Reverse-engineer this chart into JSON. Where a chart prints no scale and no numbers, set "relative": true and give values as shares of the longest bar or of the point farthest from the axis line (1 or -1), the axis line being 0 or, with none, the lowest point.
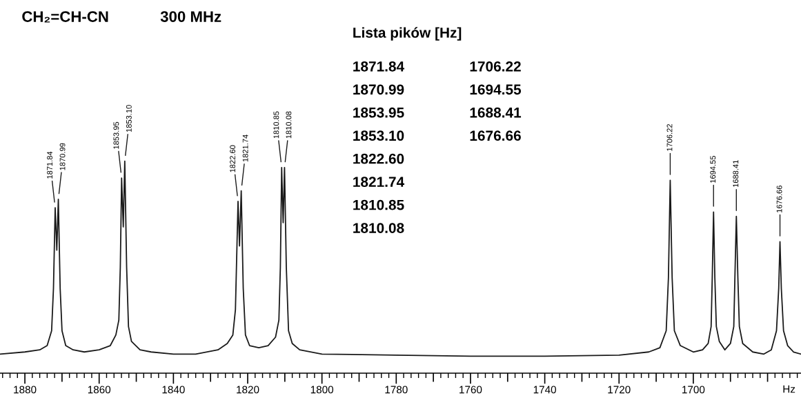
{
  "chart_data": {
    "type": "line",
    "title": "CH₂=CH-CN",
    "subtitle": "300 MHz",
    "xlabel": "Hz",
    "relative": true,
    "color": "#1a1a1a",
    "grid": false,
    "legend": false,
    "marker": "none",
    "line_style": "solid",
    "x": [
      1886.7,
      1880,
      1876,
      1874,
      1872.8,
      1872.3,
      1871.84,
      1871.4,
      1870.99,
      1870.5,
      1870.0,
      1869,
      1867,
      1864,
      1860,
      1857,
      1855.5,
      1854.7,
      1854.3,
      1853.95,
      1853.5,
      1853.1,
      1852.6,
      1852.1,
      1851.3,
      1849,
      1846,
      1840,
      1834,
      1828,
      1825.5,
      1824,
      1823.3,
      1822.6,
      1822.2,
      1821.74,
      1821.2,
      1820.6,
      1819.5,
      1817,
      1814.5,
      1812.5,
      1811.6,
      1811.2,
      1810.85,
      1810.45,
      1810.08,
      1809.6,
      1809.0,
      1808,
      1806,
      1800,
      1780,
      1760,
      1740,
      1720,
      1712,
      1709,
      1707.3,
      1706.7,
      1706.22,
      1705.7,
      1705.1,
      1703.5,
      1700,
      1697.5,
      1696,
      1695.2,
      1694.9,
      1694.55,
      1694.2,
      1693.8,
      1693,
      1691.5,
      1690,
      1689.1,
      1688.8,
      1688.41,
      1688.0,
      1687.6,
      1686.7,
      1684,
      1681,
      1679,
      1677.6,
      1677.0,
      1676.66,
      1676.3,
      1675.7,
      1674.6,
      1673,
      1671
    ],
    "values": [
      0.09,
      0.1,
      0.11,
      0.13,
      0.2,
      0.4,
      0.78,
      0.58,
      0.82,
      0.4,
      0.2,
      0.13,
      0.11,
      0.1,
      0.11,
      0.13,
      0.18,
      0.25,
      0.5,
      0.92,
      0.69,
      1.0,
      0.5,
      0.22,
      0.15,
      0.11,
      0.1,
      0.09,
      0.09,
      0.11,
      0.14,
      0.18,
      0.3,
      0.81,
      0.6,
      0.86,
      0.4,
      0.18,
      0.13,
      0.12,
      0.13,
      0.17,
      0.25,
      0.5,
      0.97,
      0.71,
      0.97,
      0.5,
      0.2,
      0.14,
      0.11,
      0.09,
      0.085,
      0.08,
      0.08,
      0.085,
      0.1,
      0.12,
      0.2,
      0.45,
      0.91,
      0.45,
      0.2,
      0.13,
      0.1,
      0.11,
      0.14,
      0.22,
      0.45,
      0.76,
      0.45,
      0.22,
      0.15,
      0.11,
      0.14,
      0.22,
      0.45,
      0.74,
      0.45,
      0.22,
      0.14,
      0.1,
      0.09,
      0.11,
      0.2,
      0.4,
      0.62,
      0.4,
      0.2,
      0.13,
      0.1,
      0.09
    ],
    "xlim": [
      1886.7,
      1671
    ],
    "xticks": [
      1880,
      {
        "value": 1870,
        "label": null
      },
      1860,
      {
        "value": 1850,
        "label": null
      },
      1840,
      {
        "value": 1830,
        "label": null
      },
      1820,
      {
        "value": 1810,
        "label": null
      },
      1800,
      {
        "value": 1790,
        "label": null
      },
      1780,
      {
        "value": 1770,
        "label": null
      },
      1760,
      {
        "value": 1750,
        "label": null
      },
      1740,
      {
        "value": 1730,
        "label": null
      },
      1720,
      {
        "value": 1710,
        "label": null
      },
      1700,
      {
        "value": 1690,
        "label": null
      },
      {
        "value": 1680,
        "label": null
      }
    ],
    "annotations": [
      {
        "text": "1871.84",
        "x": 1871.84,
        "y": 0.78
      },
      {
        "text": "1870.99",
        "x": 1870.99,
        "y": 0.82
      },
      {
        "text": "1853.95",
        "x": 1853.95,
        "y": 0.92
      },
      {
        "text": "1853.10",
        "x": 1853.1,
        "y": 1.0
      },
      {
        "text": "1822.60",
        "x": 1822.6,
        "y": 0.81
      },
      {
        "text": "1821.74",
        "x": 1821.74,
        "y": 0.86
      },
      {
        "text": "1810.85",
        "x": 1810.85,
        "y": 0.97
      },
      {
        "text": "1810.08",
        "x": 1810.08,
        "y": 0.97
      },
      {
        "text": "1706.22",
        "x": 1706.22,
        "y": 0.91
      },
      {
        "text": "1694.55",
        "x": 1694.55,
        "y": 0.76
      },
      {
        "text": "1688.41",
        "x": 1688.41,
        "y": 0.74
      },
      {
        "text": "1676.66",
        "x": 1676.66,
        "y": 0.62
      },
      "Lista pików [Hz]",
      "1871.84",
      "1870.99",
      "1853.95",
      "1853.10",
      "1822.60",
      "1821.74",
      "1810.85",
      "1810.08",
      "1706.22",
      "1694.55",
      "1688.41",
      "1676.66"
    ]
  }
}
